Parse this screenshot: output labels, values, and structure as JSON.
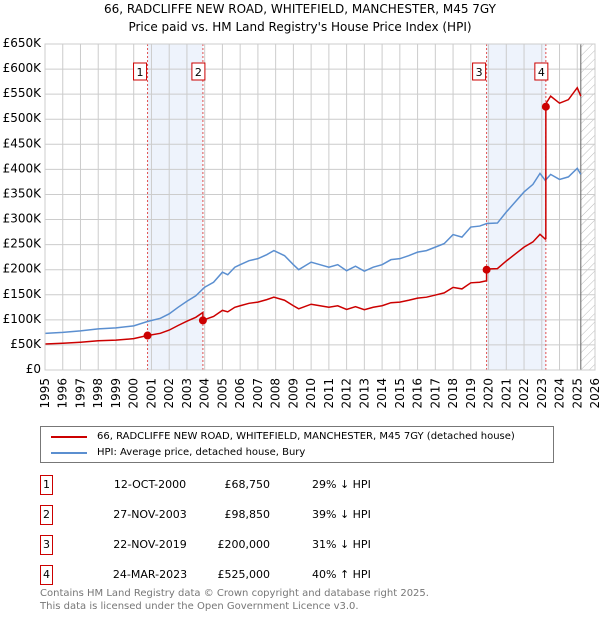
{
  "chart_data": {
    "type": "line",
    "title": "66, RADCLIFFE NEW ROAD, WHITEFIELD, MANCHESTER, M45 7GY",
    "subtitle": "Price paid vs. HM Land Registry's House Price Index (HPI)",
    "ylim": [
      0,
      650000
    ],
    "xlim": [
      1995,
      2026
    ],
    "y_ticks": [
      {
        "v": 0,
        "l": "£0"
      },
      {
        "v": 50000,
        "l": "£50K"
      },
      {
        "v": 100000,
        "l": "£100K"
      },
      {
        "v": 150000,
        "l": "£150K"
      },
      {
        "v": 200000,
        "l": "£200K"
      },
      {
        "v": 250000,
        "l": "£250K"
      },
      {
        "v": 300000,
        "l": "£300K"
      },
      {
        "v": 350000,
        "l": "£350K"
      },
      {
        "v": 400000,
        "l": "£400K"
      },
      {
        "v": 450000,
        "l": "£450K"
      },
      {
        "v": 500000,
        "l": "£500K"
      },
      {
        "v": 550000,
        "l": "£550K"
      },
      {
        "v": 600000,
        "l": "£600K"
      },
      {
        "v": 650000,
        "l": "£650K"
      }
    ],
    "x_ticks": [
      "1995",
      "1996",
      "1997",
      "1998",
      "1999",
      "2000",
      "2001",
      "2002",
      "2003",
      "2004",
      "2005",
      "2006",
      "2007",
      "2008",
      "2009",
      "2010",
      "2011",
      "2012",
      "2013",
      "2014",
      "2015",
      "2016",
      "2017",
      "2018",
      "2019",
      "2020",
      "2021",
      "2022",
      "2023",
      "2024",
      "2025",
      "2026"
    ],
    "grid": true,
    "colors": {
      "property": "#cc0000",
      "hpi": "#5b8fd0",
      "shade": "#eef3fc"
    },
    "hpi_series": [
      [
        1995,
        73
      ],
      [
        1996,
        75
      ],
      [
        1997,
        78
      ],
      [
        1998,
        82
      ],
      [
        1999,
        84
      ],
      [
        2000,
        88
      ],
      [
        2000.8,
        97
      ],
      [
        2001.5,
        103
      ],
      [
        2002,
        112
      ],
      [
        2002.5,
        125
      ],
      [
        2003,
        137
      ],
      [
        2003.5,
        148
      ],
      [
        2004,
        165
      ],
      [
        2004.5,
        175
      ],
      [
        2005,
        195
      ],
      [
        2005.3,
        190
      ],
      [
        2005.7,
        205
      ],
      [
        2006,
        210
      ],
      [
        2006.5,
        218
      ],
      [
        2007,
        222
      ],
      [
        2007.5,
        230
      ],
      [
        2007.9,
        238
      ],
      [
        2008.5,
        228
      ],
      [
        2009,
        210
      ],
      [
        2009.3,
        200
      ],
      [
        2010,
        215
      ],
      [
        2010.5,
        210
      ],
      [
        2011,
        205
      ],
      [
        2011.5,
        210
      ],
      [
        2012,
        198
      ],
      [
        2012.5,
        207
      ],
      [
        2013,
        197
      ],
      [
        2013.5,
        205
      ],
      [
        2014,
        210
      ],
      [
        2014.5,
        220
      ],
      [
        2015,
        222
      ],
      [
        2015.5,
        228
      ],
      [
        2016,
        235
      ],
      [
        2016.5,
        238
      ],
      [
        2017,
        245
      ],
      [
        2017.5,
        252
      ],
      [
        2018,
        270
      ],
      [
        2018.5,
        265
      ],
      [
        2019,
        285
      ],
      [
        2019.5,
        287
      ],
      [
        2019.9,
        292
      ],
      [
        2020.5,
        293
      ],
      [
        2021,
        315
      ],
      [
        2021.5,
        335
      ],
      [
        2022,
        355
      ],
      [
        2022.5,
        370
      ],
      [
        2022.9,
        392
      ],
      [
        2023.2,
        378
      ],
      [
        2023.5,
        390
      ],
      [
        2024,
        380
      ],
      [
        2024.5,
        385
      ],
      [
        2025,
        402
      ],
      [
        2025.2,
        390
      ]
    ],
    "sales": [
      {
        "n": "1",
        "x": 2000.78,
        "date": "12-OCT-2000",
        "price": "£68,750",
        "value": 68750,
        "hpi": "29% ↓ HPI"
      },
      {
        "n": "2",
        "x": 2003.9,
        "date": "27-NOV-2003",
        "price": "£98,850",
        "value": 98850,
        "hpi": "39% ↓ HPI"
      },
      {
        "n": "3",
        "x": 2019.89,
        "date": "22-NOV-2019",
        "price": "£200,000",
        "value": 200000,
        "hpi": "31% ↓ HPI"
      },
      {
        "n": "4",
        "x": 2023.23,
        "date": "24-MAR-2023",
        "price": "£525,000",
        "value": 525000,
        "hpi": "40% ↑ HPI"
      }
    ],
    "legend": {
      "property": "66, RADCLIFFE NEW ROAD, WHITEFIELD, MANCHESTER, M45 7GY (detached house)",
      "hpi": "HPI: Average price, detached house, Bury"
    }
  },
  "footer": {
    "line1": "Contains HM Land Registry data © Crown copyright and database right 2025.",
    "line2": "This data is licensed under the Open Government Licence v3.0."
  }
}
